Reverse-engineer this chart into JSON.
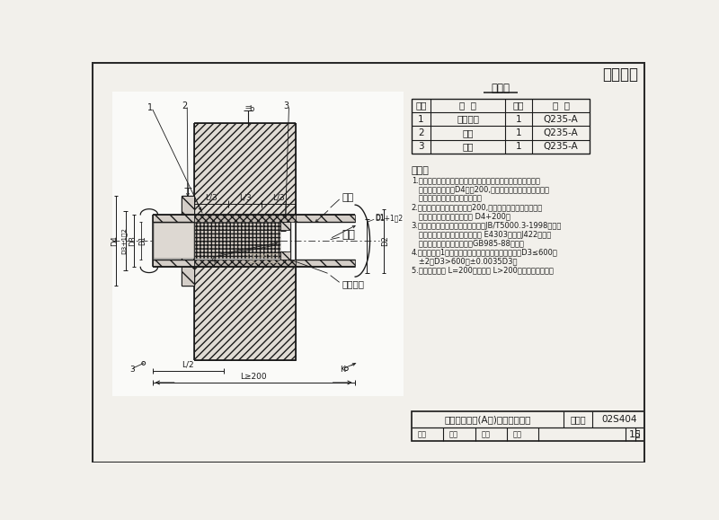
{
  "bg_color": "#f2f0eb",
  "line_color": "#1a1a1a",
  "title_company": "久安管道",
  "materials_title": "材料表",
  "materials_headers": [
    "序号",
    "名  称",
    "数量",
    "材  料"
  ],
  "materials_rows": [
    [
      "1",
      "钢制套管",
      "1",
      "Q235-A"
    ],
    [
      "2",
      "翼环",
      "1",
      "Q235-A"
    ],
    [
      "3",
      "挡圈",
      "1",
      "Q235-A"
    ]
  ],
  "notes_title": "说明：",
  "notes": [
    "1.套管穿墙处如遇非混凝土墙壁时，应改用混凝土墙壁，其浇注",
    "   圈应比翼环直径（D4）大200,而且必须将套管一次浇固于墙",
    "   内．套管内的填料应紧密搞实．",
    "2.穿管处混凝土墙厚应不小于200,否则应使墙壁一边或两边加",
    "   厚．加厚部分的直径至少为 D4+200．",
    "3.焊接结构尺寸公差与形位公差按照JB/T5000.3-1998执行．",
    "   焊接采用手工电弧焊，焊条型号 E4303，牌号J422．焊缝",
    "   坡口的基本形式与尺寸按照GB985-88执行．",
    "4.当套管（件1）采用卷制成型时，周长允许偏差为：D3≤600，",
    "   ±2，D3>600，±0.0035D3．",
    "5.套管的重量以 L=200计算，当 L>200时，应另行计算．"
  ],
  "footer_title": "别性防水套管(A型)安装图（一）",
  "footer_tuhao": "图集号",
  "footer_tuhao_val": "02S404",
  "footer_page": "15",
  "label_youma": "油麻",
  "label_gangguan": "钢管",
  "label_shigao": "石棉水泥",
  "wm_text": "久安*管道",
  "dim_labels": [
    "L/3",
    "L/3",
    "L/3"
  ],
  "dim_L2": "L/2",
  "dim_L200": "L≥200"
}
